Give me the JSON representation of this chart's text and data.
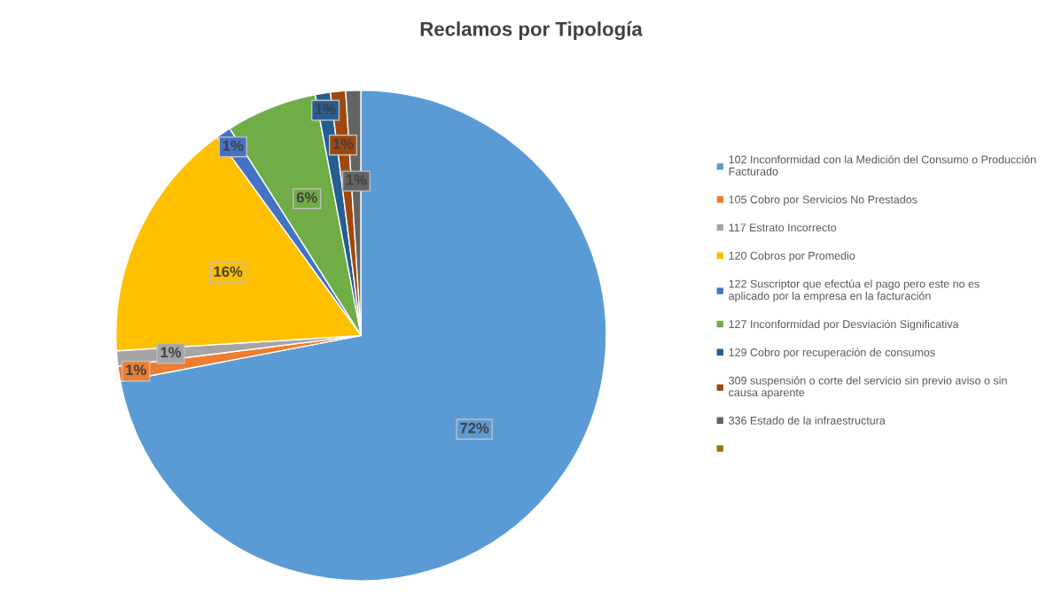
{
  "chart_data": {
    "type": "pie",
    "title": "Reclamos por Tipología",
    "categories": [
      "102 Inconformidad con la Medición del Consumo o Producción Facturado",
      "105 Cobro por Servicios No Prestados",
      "117 Estrato Incorrecto",
      "120 Cobros por Promedio",
      "122 Suscriptor que efectúa el pago pero este no es aplicado por la empresa en la facturación",
      "127 Inconformidad por Desviación Significativa",
      "129 Cobro por recuperación de consumos",
      "309 suspensión o corte del servicio sin previo aviso o sin causa aparente",
      "336 Estado de la infraestructura",
      null
    ],
    "values": [
      72,
      1,
      1,
      16,
      1,
      6,
      1,
      1,
      1,
      0
    ],
    "value_labels": [
      "72%",
      "1%",
      "1%",
      "16%",
      "1%",
      "6%",
      "1%",
      "1%",
      "1%",
      null
    ],
    "colors": [
      "#5b9bd5",
      "#ed7d31",
      "#a5a5a5",
      "#ffc000",
      "#4472c4",
      "#70ad47",
      "#255e91",
      "#9e480e",
      "#636363",
      "#997300"
    ],
    "legend": "right"
  }
}
